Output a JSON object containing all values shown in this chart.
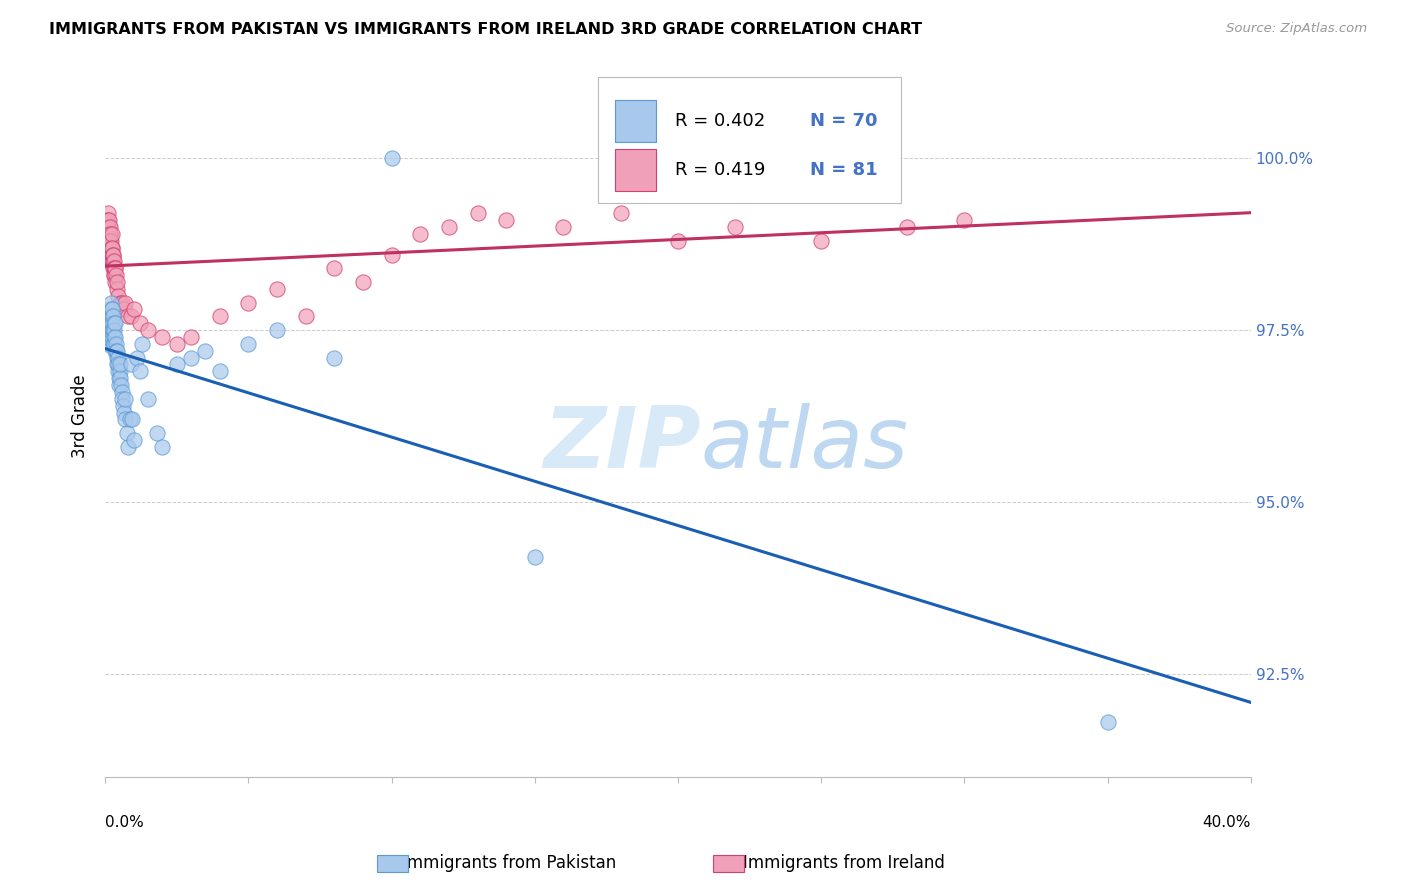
{
  "title": "IMMIGRANTS FROM PAKISTAN VS IMMIGRANTS FROM IRELAND 3RD GRADE CORRELATION CHART",
  "source": "Source: ZipAtlas.com",
  "ylabel": "3rd Grade",
  "x_range": [
    0.0,
    40.0
  ],
  "y_range": [
    91.0,
    101.5
  ],
  "y_ticks": [
    92.5,
    95.0,
    97.5,
    100.0
  ],
  "y_tick_labels": [
    "92.5%",
    "95.0%",
    "97.5%",
    "100.0%"
  ],
  "color_pakistan_fill": "#A8C8EC",
  "color_pakistan_edge": "#5B9BD5",
  "color_ireland_fill": "#F0A0B8",
  "color_ireland_edge": "#D04070",
  "color_trendline_pakistan": "#1A5FB4",
  "color_trendline_ireland": "#C03060",
  "color_right_axis": "#4472C4",
  "watermark_zip": "ZIP",
  "watermark_atlas": "atlas",
  "legend_r_pak": "R = 0.402",
  "legend_n_pak": "N = 70",
  "legend_r_ire": "R = 0.419",
  "legend_n_ire": "N = 81",
  "bottom_label_pak": "Immigrants from Pakistan",
  "bottom_label_ire": "Immigrants from Ireland",
  "pakistan_x": [
    0.05,
    0.08,
    0.1,
    0.12,
    0.14,
    0.15,
    0.15,
    0.17,
    0.18,
    0.18,
    0.2,
    0.2,
    0.22,
    0.22,
    0.23,
    0.24,
    0.25,
    0.25,
    0.26,
    0.28,
    0.28,
    0.3,
    0.3,
    0.3,
    0.32,
    0.33,
    0.35,
    0.35,
    0.37,
    0.38,
    0.4,
    0.4,
    0.42,
    0.43,
    0.45,
    0.45,
    0.47,
    0.48,
    0.5,
    0.5,
    0.52,
    0.55,
    0.58,
    0.6,
    0.62,
    0.65,
    0.68,
    0.7,
    0.75,
    0.8,
    0.85,
    0.9,
    0.95,
    1.0,
    1.1,
    1.2,
    1.3,
    1.5,
    1.8,
    2.0,
    2.5,
    3.0,
    3.5,
    4.0,
    5.0,
    6.0,
    8.0,
    10.0,
    15.0,
    35.0
  ],
  "pakistan_y": [
    97.3,
    97.5,
    97.4,
    97.6,
    97.5,
    97.7,
    97.6,
    97.8,
    97.7,
    97.5,
    97.9,
    97.6,
    97.8,
    97.5,
    97.7,
    97.6,
    97.8,
    97.4,
    97.5,
    97.7,
    97.3,
    97.6,
    97.4,
    97.5,
    97.3,
    97.6,
    97.2,
    97.4,
    97.3,
    97.2,
    97.1,
    97.0,
    97.2,
    96.9,
    97.1,
    97.0,
    96.8,
    96.7,
    96.9,
    96.8,
    97.0,
    96.7,
    96.6,
    96.5,
    96.4,
    96.3,
    96.5,
    96.2,
    96.0,
    95.8,
    96.2,
    97.0,
    96.2,
    95.9,
    97.1,
    96.9,
    97.3,
    96.5,
    96.0,
    95.8,
    97.0,
    97.1,
    97.2,
    96.9,
    97.3,
    97.5,
    97.1,
    100.0,
    94.2,
    91.8
  ],
  "ireland_x": [
    0.02,
    0.04,
    0.06,
    0.07,
    0.08,
    0.08,
    0.09,
    0.1,
    0.1,
    0.11,
    0.12,
    0.12,
    0.13,
    0.14,
    0.15,
    0.15,
    0.15,
    0.16,
    0.16,
    0.17,
    0.18,
    0.18,
    0.18,
    0.19,
    0.2,
    0.2,
    0.2,
    0.21,
    0.22,
    0.22,
    0.22,
    0.23,
    0.24,
    0.25,
    0.25,
    0.26,
    0.27,
    0.28,
    0.28,
    0.3,
    0.3,
    0.31,
    0.32,
    0.33,
    0.35,
    0.35,
    0.38,
    0.4,
    0.42,
    0.45,
    0.5,
    0.55,
    0.6,
    0.65,
    0.7,
    0.8,
    0.9,
    1.0,
    1.2,
    1.5,
    2.0,
    2.5,
    3.0,
    4.0,
    5.0,
    6.0,
    7.0,
    8.0,
    9.0,
    10.0,
    11.0,
    12.0,
    13.0,
    14.0,
    16.0,
    18.0,
    20.0,
    22.0,
    25.0,
    28.0,
    30.0
  ],
  "ireland_y": [
    98.9,
    99.0,
    99.1,
    99.0,
    98.8,
    99.2,
    98.9,
    99.1,
    98.8,
    98.7,
    99.0,
    98.9,
    98.8,
    99.1,
    98.7,
    98.9,
    99.0,
    98.6,
    98.8,
    98.9,
    98.7,
    98.5,
    98.8,
    98.6,
    98.7,
    98.5,
    98.8,
    98.6,
    98.5,
    98.7,
    98.9,
    98.5,
    98.6,
    98.7,
    98.5,
    98.6,
    98.5,
    98.4,
    98.6,
    98.5,
    98.3,
    98.4,
    98.3,
    98.4,
    98.2,
    98.4,
    98.3,
    98.1,
    98.2,
    98.0,
    97.9,
    97.8,
    97.9,
    97.8,
    97.9,
    97.7,
    97.7,
    97.8,
    97.6,
    97.5,
    97.4,
    97.3,
    97.4,
    97.7,
    97.9,
    98.1,
    97.7,
    98.4,
    98.2,
    98.6,
    98.9,
    99.0,
    99.2,
    99.1,
    99.0,
    99.2,
    98.8,
    99.0,
    98.8,
    99.0,
    99.1
  ]
}
